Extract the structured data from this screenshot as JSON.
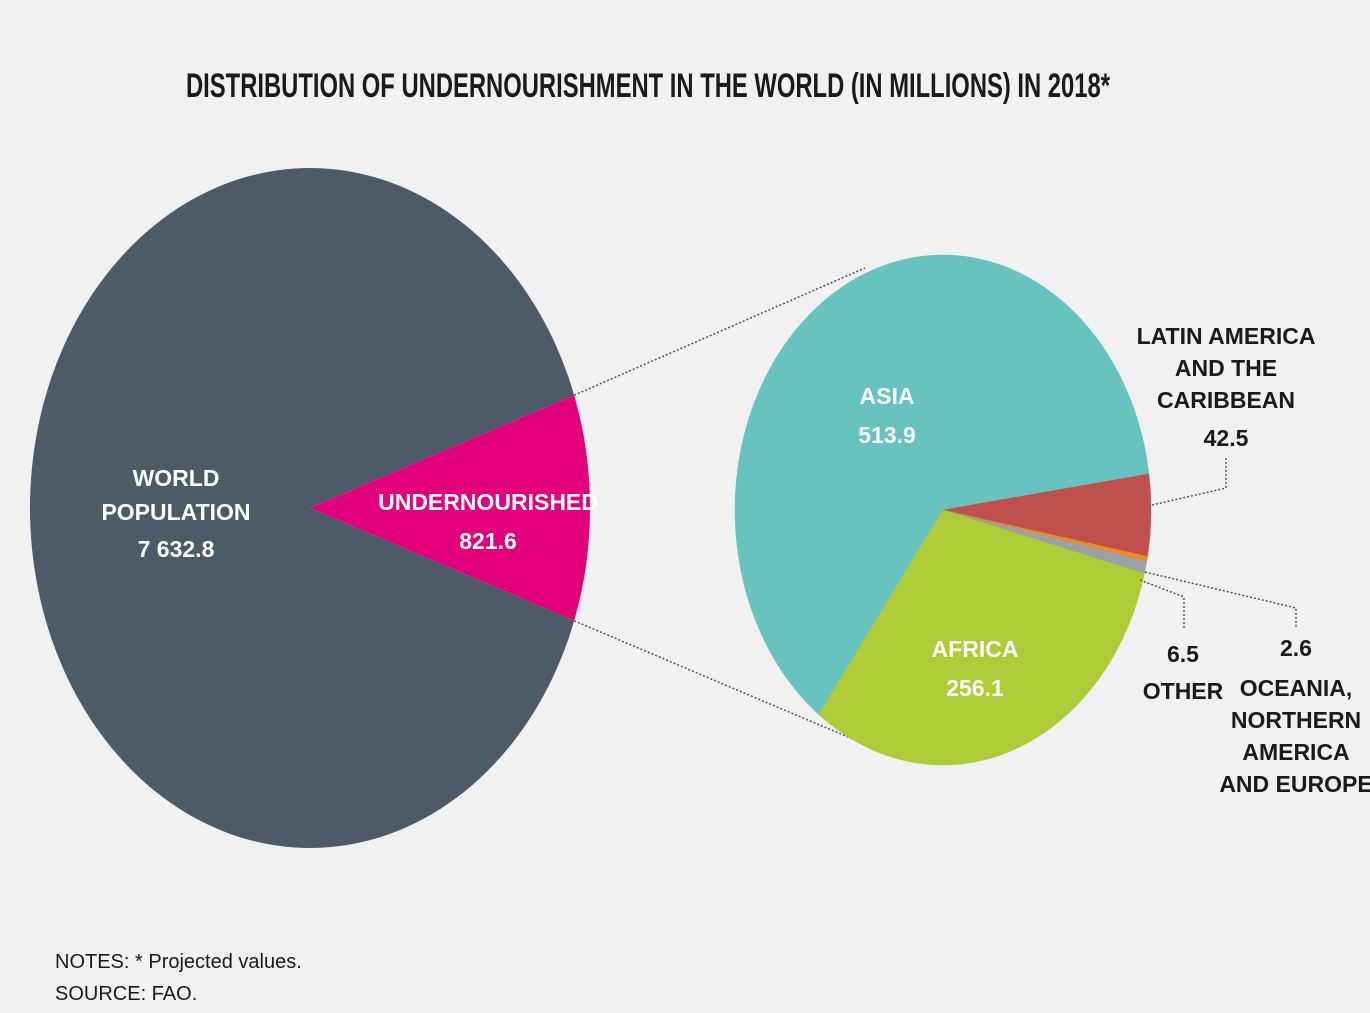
{
  "title": "DISTRIBUTION OF UNDERNOURISHMENT IN THE WORLD (IN MILLIONS) IN 2018*",
  "notes": "NOTES: * Projected values.",
  "source": "SOURCE: FAO.",
  "chart_data": [
    {
      "type": "pie",
      "slices": [
        {
          "key": "world",
          "label_lines": [
            "WORLD",
            "POPULATION"
          ],
          "value_text": "7 632.8",
          "value": 7632.8,
          "color": "#4d5a68"
        },
        {
          "key": "undernourished",
          "label_lines": [
            "UNDERNOURISHED"
          ],
          "value_text": "821.6",
          "value": 821.6,
          "color": "#e3007b"
        }
      ]
    },
    {
      "type": "pie",
      "slices": [
        {
          "key": "asia",
          "label_lines": [
            "ASIA"
          ],
          "value_text": "513.9",
          "value": 513.9,
          "color": "#67c2c0"
        },
        {
          "key": "latam",
          "label_lines": [
            "LATIN AMERICA",
            "AND THE",
            "CARIBBEAN"
          ],
          "value_text": "42.5",
          "value": 42.5,
          "color": "#bf504d"
        },
        {
          "key": "oceania",
          "label_lines": [
            "OCEANIA,",
            "NORTHERN",
            "AMERICA",
            "AND EUROPE"
          ],
          "value_text": "2.6",
          "value": 2.6,
          "color": "#f08a1c"
        },
        {
          "key": "other",
          "label_lines": [
            "OTHER"
          ],
          "value_text": "6.5",
          "value": 6.5,
          "color": "#9aa0a6"
        },
        {
          "key": "africa",
          "label_lines": [
            "AFRICA"
          ],
          "value_text": "256.1",
          "value": 256.1,
          "color": "#b0cb38"
        }
      ]
    }
  ]
}
